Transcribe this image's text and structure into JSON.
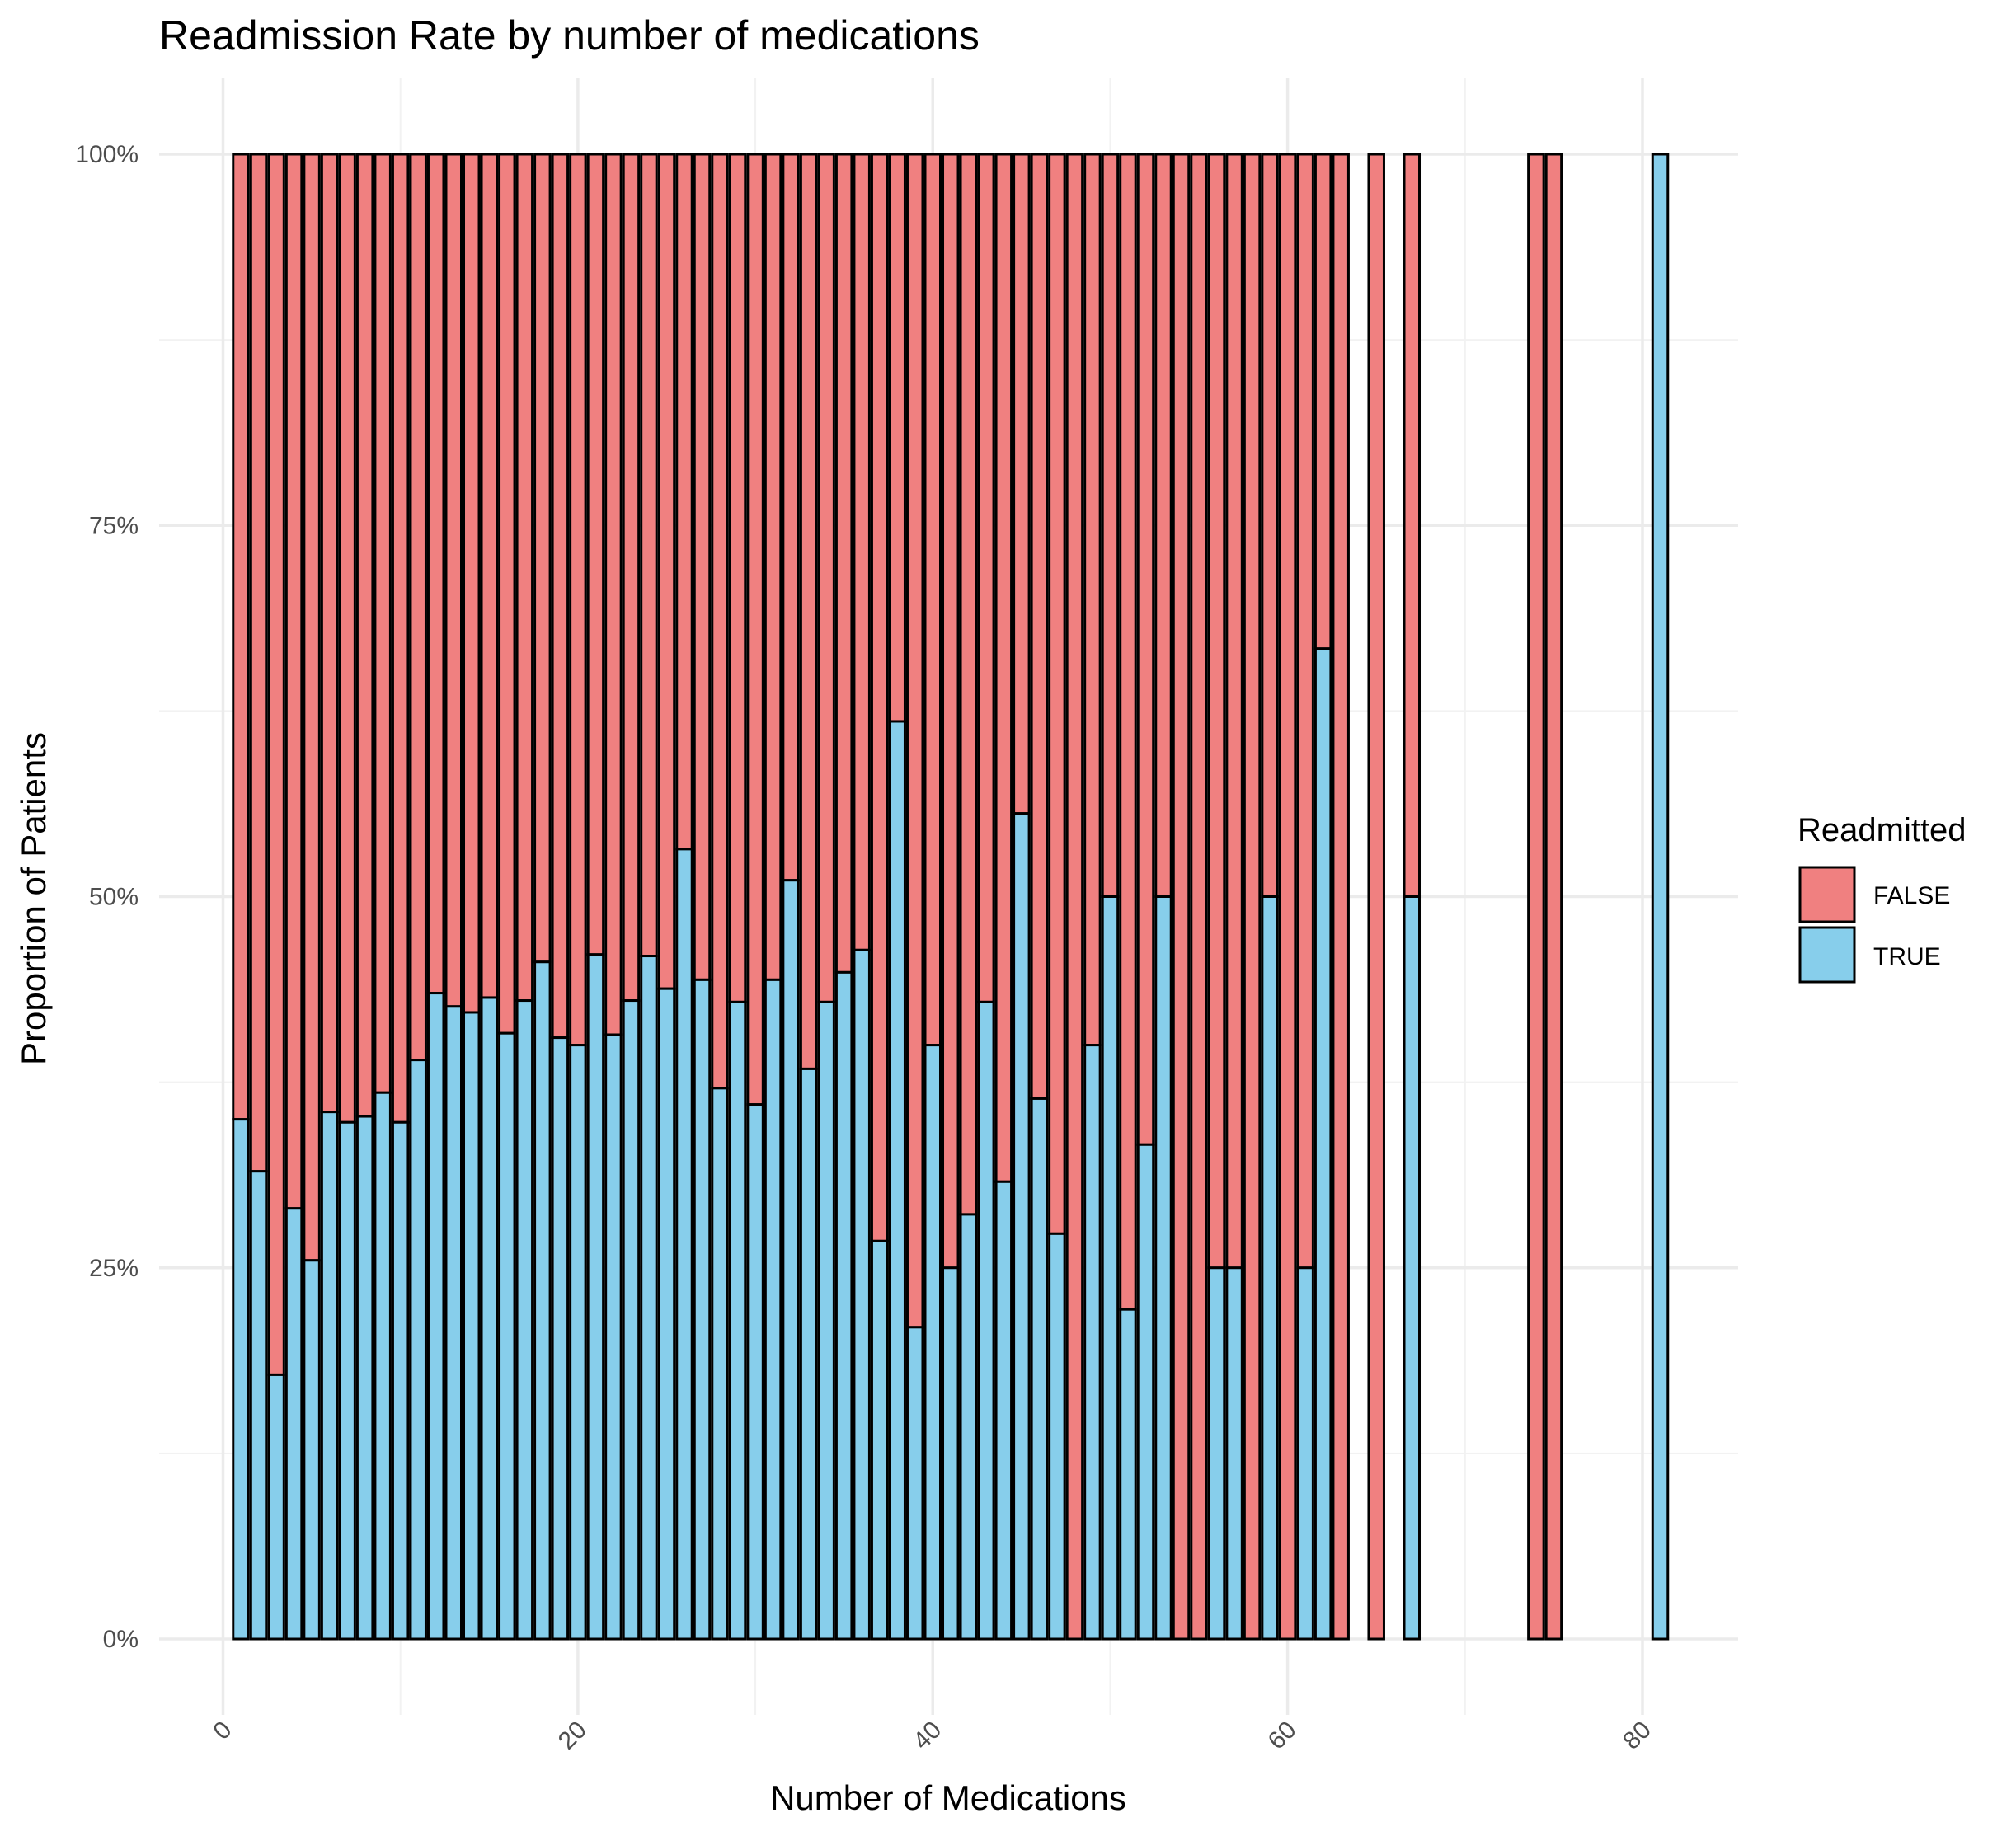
{
  "chart_data": {
    "type": "bar",
    "stacked": true,
    "position": "fill",
    "title": "Readmission Rate by number of medications",
    "xlabel": "Number of Medications",
    "ylabel": "Proportion of Patients",
    "xlim": [
      0,
      85
    ],
    "ylim": [
      0,
      1
    ],
    "x_ticks": [
      0,
      20,
      40,
      60,
      80
    ],
    "x_tick_labels": [
      "0",
      "20",
      "40",
      "60",
      "80"
    ],
    "y_ticks": [
      0,
      0.25,
      0.5,
      0.75,
      1
    ],
    "y_tick_labels": [
      "0%",
      "25%",
      "50%",
      "75%",
      "100%"
    ],
    "grid": true,
    "legend": {
      "title": "Readmitted",
      "position": "right",
      "entries": [
        {
          "label": "FALSE",
          "color": "#F08080"
        },
        {
          "label": "TRUE",
          "color": "#87CEEB"
        }
      ]
    },
    "x": [
      1,
      2,
      3,
      4,
      5,
      6,
      7,
      8,
      9,
      10,
      11,
      12,
      13,
      14,
      15,
      16,
      17,
      18,
      19,
      20,
      21,
      22,
      23,
      24,
      25,
      26,
      27,
      28,
      29,
      30,
      31,
      32,
      33,
      34,
      35,
      36,
      37,
      38,
      39,
      40,
      41,
      42,
      43,
      44,
      45,
      46,
      47,
      48,
      49,
      50,
      51,
      52,
      53,
      54,
      55,
      56,
      57,
      58,
      59,
      60,
      61,
      62,
      63,
      65,
      67,
      74,
      75,
      81
    ],
    "series": [
      {
        "name": "TRUE",
        "color": "#87CEEB",
        "values": [
          0.35,
          0.315,
          0.178,
          0.29,
          0.255,
          0.355,
          0.348,
          0.352,
          0.368,
          0.348,
          0.39,
          0.435,
          0.426,
          0.422,
          0.432,
          0.408,
          0.43,
          0.456,
          0.405,
          0.4,
          0.461,
          0.407,
          0.43,
          0.46,
          0.438,
          0.532,
          0.444,
          0.371,
          0.429,
          0.36,
          0.444,
          0.511,
          0.384,
          0.429,
          0.449,
          0.464,
          0.268,
          0.618,
          0.21,
          0.4,
          0.25,
          0.286,
          0.429,
          0.308,
          0.556,
          0.364,
          0.273,
          0.0,
          0.4,
          0.5,
          0.222,
          0.333,
          0.5,
          0.0,
          0.0,
          0.25,
          0.25,
          0.0,
          0.5,
          0.0,
          0.25,
          0.667,
          0.0,
          0.0,
          0.5,
          0.0,
          0.0,
          1.0
        ]
      },
      {
        "name": "FALSE",
        "color": "#F08080",
        "values": [
          0.65,
          0.685,
          0.822,
          0.71,
          0.745,
          0.645,
          0.652,
          0.648,
          0.632,
          0.652,
          0.61,
          0.565,
          0.574,
          0.578,
          0.568,
          0.592,
          0.57,
          0.544,
          0.595,
          0.6,
          0.539,
          0.593,
          0.57,
          0.54,
          0.562,
          0.468,
          0.556,
          0.629,
          0.571,
          0.64,
          0.556,
          0.489,
          0.616,
          0.571,
          0.551,
          0.536,
          0.732,
          0.382,
          0.79,
          0.6,
          0.75,
          0.714,
          0.571,
          0.692,
          0.444,
          0.636,
          0.727,
          1.0,
          0.6,
          0.5,
          0.778,
          0.667,
          0.5,
          1.0,
          1.0,
          0.75,
          0.75,
          1.0,
          0.5,
          1.0,
          0.75,
          0.333,
          1.0,
          1.0,
          0.5,
          1.0,
          1.0,
          0.0
        ]
      }
    ]
  }
}
